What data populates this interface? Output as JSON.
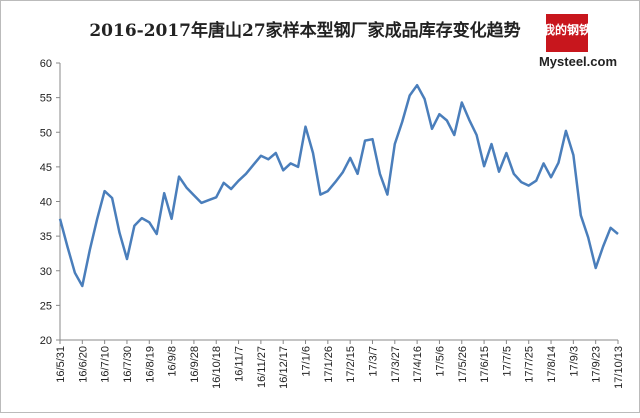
{
  "chart_data": {
    "type": "line",
    "title": "2016-2017年唐山27家样本型钢厂家成品库存变化趋势",
    "logo_text": "我的钢铁",
    "logo_site": "Mysteel.com",
    "categories": [
      "16/5/31",
      null,
      null,
      "16/6/20",
      null,
      null,
      "16/7/10",
      null,
      null,
      "16/7/30",
      null,
      null,
      "16/8/19",
      null,
      null,
      "16/9/8",
      null,
      null,
      "16/9/28",
      null,
      null,
      "16/10/18",
      null,
      null,
      "16/11/7",
      null,
      null,
      "16/11/27",
      null,
      null,
      "16/12/17",
      null,
      null,
      "17/1/6",
      null,
      null,
      "17/1/26",
      null,
      null,
      "17/2/15",
      null,
      null,
      "17/3/7",
      null,
      null,
      "17/3/27",
      null,
      null,
      "17/4/16",
      null,
      null,
      "17/5/6",
      null,
      null,
      "17/5/26",
      null,
      null,
      "17/6/15",
      null,
      null,
      "17/7/5",
      null,
      null,
      "17/7/25",
      null,
      null,
      "17/8/14",
      null,
      null,
      "17/9/3",
      null,
      null,
      "17/9/23",
      null,
      null,
      "17/10/13"
    ],
    "values": [
      37.5,
      33.5,
      29.7,
      27.8,
      33,
      37.5,
      41.5,
      40.5,
      35.5,
      31.7,
      36.5,
      37.6,
      37,
      35.3,
      41.2,
      37.5,
      43.6,
      42,
      40.9,
      39.8,
      40.2,
      40.6,
      42.7,
      41.8,
      43,
      44,
      45.3,
      46.6,
      46.1,
      47,
      44.5,
      45.5,
      45,
      50.8,
      47,
      41,
      41.5,
      42.8,
      44.2,
      46.3,
      44,
      48.8,
      49,
      44,
      41,
      48.3,
      51.5,
      55.3,
      56.8,
      54.8,
      50.5,
      52.6,
      51.7,
      49.6,
      54.3,
      51.8,
      49.6,
      45.1,
      48.3,
      44.3,
      47,
      44,
      42.8,
      42.3,
      43,
      45.5,
      43.5,
      45.6,
      50.2,
      46.7,
      38,
      34.8,
      30.4,
      33.5,
      36.2,
      35.3
    ],
    "color": "#4a7ebb",
    "ylim": [
      20,
      60
    ],
    "yticks": [
      20,
      25,
      30,
      35,
      40,
      45,
      50,
      55,
      60
    ],
    "grid": false
  }
}
